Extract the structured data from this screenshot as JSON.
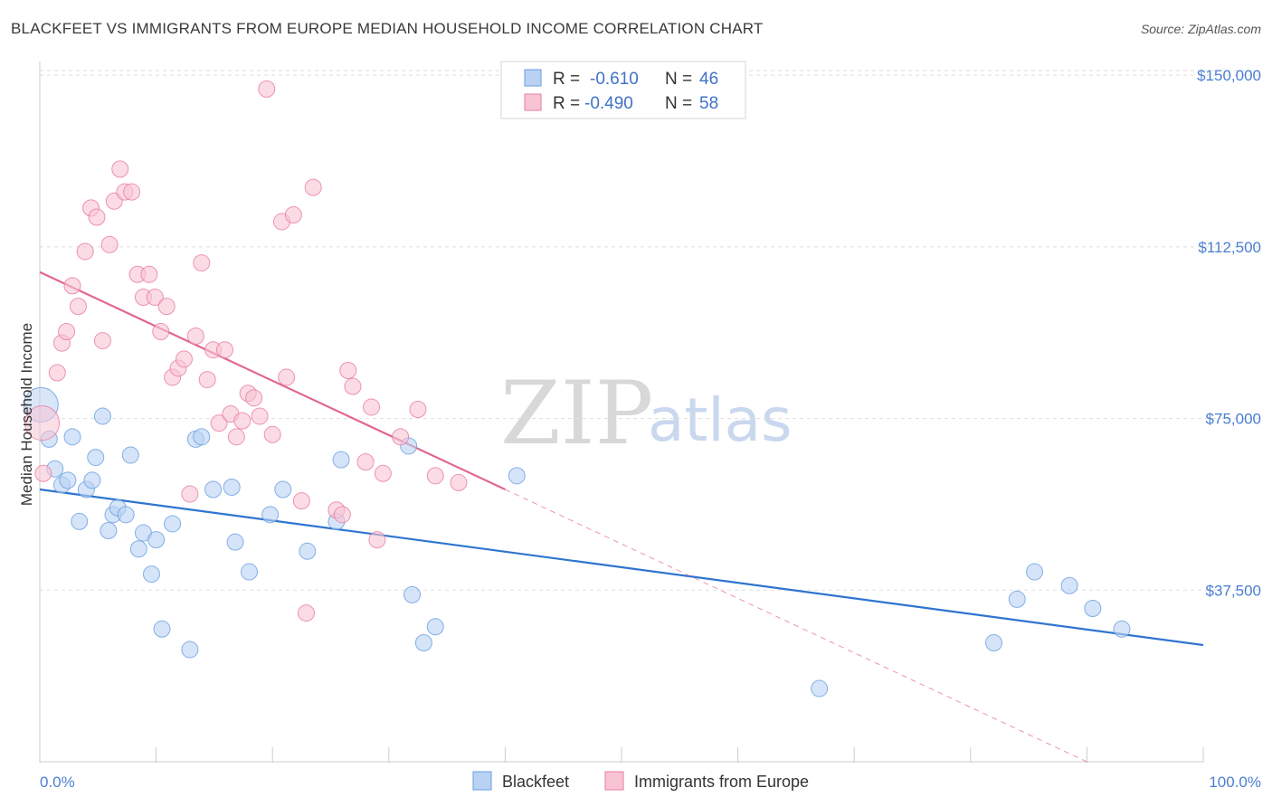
{
  "title": "BLACKFEET VS IMMIGRANTS FROM EUROPE MEDIAN HOUSEHOLD INCOME CORRELATION CHART",
  "source": "Source: ZipAtlas.com",
  "watermark": {
    "zip": "ZIP",
    "atlas": "atlas"
  },
  "colors": {
    "blue": "#6a9ee0",
    "blue_fill": "#b9d2f3",
    "blue_line": "#2e74d0",
    "pink": "#e87ba0",
    "pink_fill": "#f8c4d4",
    "pink_line": "#e2678f",
    "grid": "#dddddd",
    "axis_text": "#4a7fd0"
  },
  "legend": {
    "row1": {
      "r_label": "R =",
      "r_value": "-0.610",
      "n_label": "N =",
      "n_value": "46"
    },
    "row2": {
      "r_label": "R =",
      "r_value": "-0.490",
      "n_label": "N =",
      "n_value": "58"
    }
  },
  "bottom_legend": {
    "blue": "Blackfeet",
    "pink": "Immigrants from Europe"
  },
  "chart_data": {
    "type": "scatter",
    "title": "BLACKFEET VS IMMIGRANTS FROM EUROPE MEDIAN HOUSEHOLD INCOME CORRELATION CHART",
    "xlabel": "",
    "ylabel": "Median Household Income",
    "xlim": [
      0,
      100
    ],
    "ylim": [
      0,
      153000
    ],
    "x_tick_labels": [
      "0.0%",
      "100.0%"
    ],
    "y_ticks": [
      37500,
      75000,
      112500,
      150000
    ],
    "y_tick_labels": [
      "$37,500",
      "$75,000",
      "$112,500",
      "$150,000"
    ],
    "grid": true,
    "legend_position": "top-center",
    "series": [
      {
        "name": "Blackfeet",
        "color": "#6a9ee0",
        "trend": {
          "x": [
            0,
            100
          ],
          "y": [
            59500,
            25500
          ]
        },
        "points": [
          {
            "x": 0.1,
            "y": 78000,
            "big": true
          },
          {
            "x": 0.8,
            "y": 70500
          },
          {
            "x": 1.3,
            "y": 64000
          },
          {
            "x": 1.9,
            "y": 60500
          },
          {
            "x": 2.4,
            "y": 61500
          },
          {
            "x": 2.8,
            "y": 71000
          },
          {
            "x": 3.4,
            "y": 52500
          },
          {
            "x": 4.0,
            "y": 59500
          },
          {
            "x": 4.5,
            "y": 61500
          },
          {
            "x": 4.8,
            "y": 66500
          },
          {
            "x": 5.4,
            "y": 75500
          },
          {
            "x": 5.9,
            "y": 50500
          },
          {
            "x": 6.3,
            "y": 54000
          },
          {
            "x": 6.7,
            "y": 55500
          },
          {
            "x": 7.4,
            "y": 54000
          },
          {
            "x": 7.8,
            "y": 67000
          },
          {
            "x": 8.5,
            "y": 46500
          },
          {
            "x": 8.9,
            "y": 50000
          },
          {
            "x": 9.6,
            "y": 41000
          },
          {
            "x": 10.0,
            "y": 48500
          },
          {
            "x": 10.5,
            "y": 29000
          },
          {
            "x": 11.4,
            "y": 52000
          },
          {
            "x": 12.9,
            "y": 24500
          },
          {
            "x": 13.4,
            "y": 70500
          },
          {
            "x": 13.9,
            "y": 71000
          },
          {
            "x": 14.9,
            "y": 59500
          },
          {
            "x": 16.5,
            "y": 60000
          },
          {
            "x": 16.8,
            "y": 48000
          },
          {
            "x": 18.0,
            "y": 41500
          },
          {
            "x": 19.8,
            "y": 54000
          },
          {
            "x": 20.9,
            "y": 59500
          },
          {
            "x": 23.0,
            "y": 46000
          },
          {
            "x": 25.5,
            "y": 52500
          },
          {
            "x": 25.9,
            "y": 66000
          },
          {
            "x": 32.0,
            "y": 36500
          },
          {
            "x": 31.7,
            "y": 69000
          },
          {
            "x": 33.0,
            "y": 26000
          },
          {
            "x": 34.0,
            "y": 29500
          },
          {
            "x": 41.0,
            "y": 62500
          },
          {
            "x": 67.0,
            "y": 16000
          },
          {
            "x": 82.0,
            "y": 26000
          },
          {
            "x": 84.0,
            "y": 35500
          },
          {
            "x": 85.5,
            "y": 41500
          },
          {
            "x": 88.5,
            "y": 38500
          },
          {
            "x": 90.5,
            "y": 33500
          },
          {
            "x": 93.0,
            "y": 29000
          }
        ]
      },
      {
        "name": "Immigrants from Europe",
        "color": "#e87ba0",
        "trend": {
          "x": [
            0,
            40
          ],
          "y": [
            107000,
            59500
          ]
        },
        "trend_dashed": {
          "x": [
            40,
            90
          ],
          "y": [
            59500,
            0
          ]
        },
        "points": [
          {
            "x": 0.2,
            "y": 74000,
            "big": true
          },
          {
            "x": 0.3,
            "y": 63000
          },
          {
            "x": 1.5,
            "y": 85000
          },
          {
            "x": 1.9,
            "y": 91500
          },
          {
            "x": 2.3,
            "y": 94000
          },
          {
            "x": 2.8,
            "y": 104000
          },
          {
            "x": 3.3,
            "y": 99500
          },
          {
            "x": 3.9,
            "y": 111500
          },
          {
            "x": 4.4,
            "y": 121000
          },
          {
            "x": 4.9,
            "y": 119000
          },
          {
            "x": 5.4,
            "y": 92000
          },
          {
            "x": 6.0,
            "y": 113000
          },
          {
            "x": 6.4,
            "y": 122500
          },
          {
            "x": 6.9,
            "y": 129500
          },
          {
            "x": 7.3,
            "y": 124500
          },
          {
            "x": 7.9,
            "y": 124500
          },
          {
            "x": 8.4,
            "y": 106500
          },
          {
            "x": 8.9,
            "y": 101500
          },
          {
            "x": 9.4,
            "y": 106500
          },
          {
            "x": 9.9,
            "y": 101500
          },
          {
            "x": 10.4,
            "y": 94000
          },
          {
            "x": 10.9,
            "y": 99500
          },
          {
            "x": 11.4,
            "y": 84000
          },
          {
            "x": 11.9,
            "y": 86000
          },
          {
            "x": 12.4,
            "y": 88000
          },
          {
            "x": 12.9,
            "y": 58500
          },
          {
            "x": 13.4,
            "y": 93000
          },
          {
            "x": 13.9,
            "y": 109000
          },
          {
            "x": 14.4,
            "y": 83500
          },
          {
            "x": 14.9,
            "y": 90000
          },
          {
            "x": 15.4,
            "y": 74000
          },
          {
            "x": 15.9,
            "y": 90000
          },
          {
            "x": 16.4,
            "y": 76000
          },
          {
            "x": 16.9,
            "y": 71000
          },
          {
            "x": 17.4,
            "y": 74500
          },
          {
            "x": 17.9,
            "y": 80500
          },
          {
            "x": 18.4,
            "y": 79500
          },
          {
            "x": 18.9,
            "y": 75500
          },
          {
            "x": 19.5,
            "y": 147000
          },
          {
            "x": 20.0,
            "y": 71500
          },
          {
            "x": 20.8,
            "y": 118000
          },
          {
            "x": 21.2,
            "y": 84000
          },
          {
            "x": 21.8,
            "y": 119500
          },
          {
            "x": 22.5,
            "y": 57000
          },
          {
            "x": 22.9,
            "y": 32500
          },
          {
            "x": 23.5,
            "y": 125500
          },
          {
            "x": 25.5,
            "y": 55000
          },
          {
            "x": 26.0,
            "y": 54000
          },
          {
            "x": 26.5,
            "y": 85500
          },
          {
            "x": 26.9,
            "y": 82000
          },
          {
            "x": 28.0,
            "y": 65500
          },
          {
            "x": 28.5,
            "y": 77500
          },
          {
            "x": 29.0,
            "y": 48500
          },
          {
            "x": 29.5,
            "y": 63000
          },
          {
            "x": 31.0,
            "y": 71000
          },
          {
            "x": 32.5,
            "y": 77000
          },
          {
            "x": 34.0,
            "y": 62500
          },
          {
            "x": 36.0,
            "y": 61000
          }
        ]
      }
    ]
  }
}
